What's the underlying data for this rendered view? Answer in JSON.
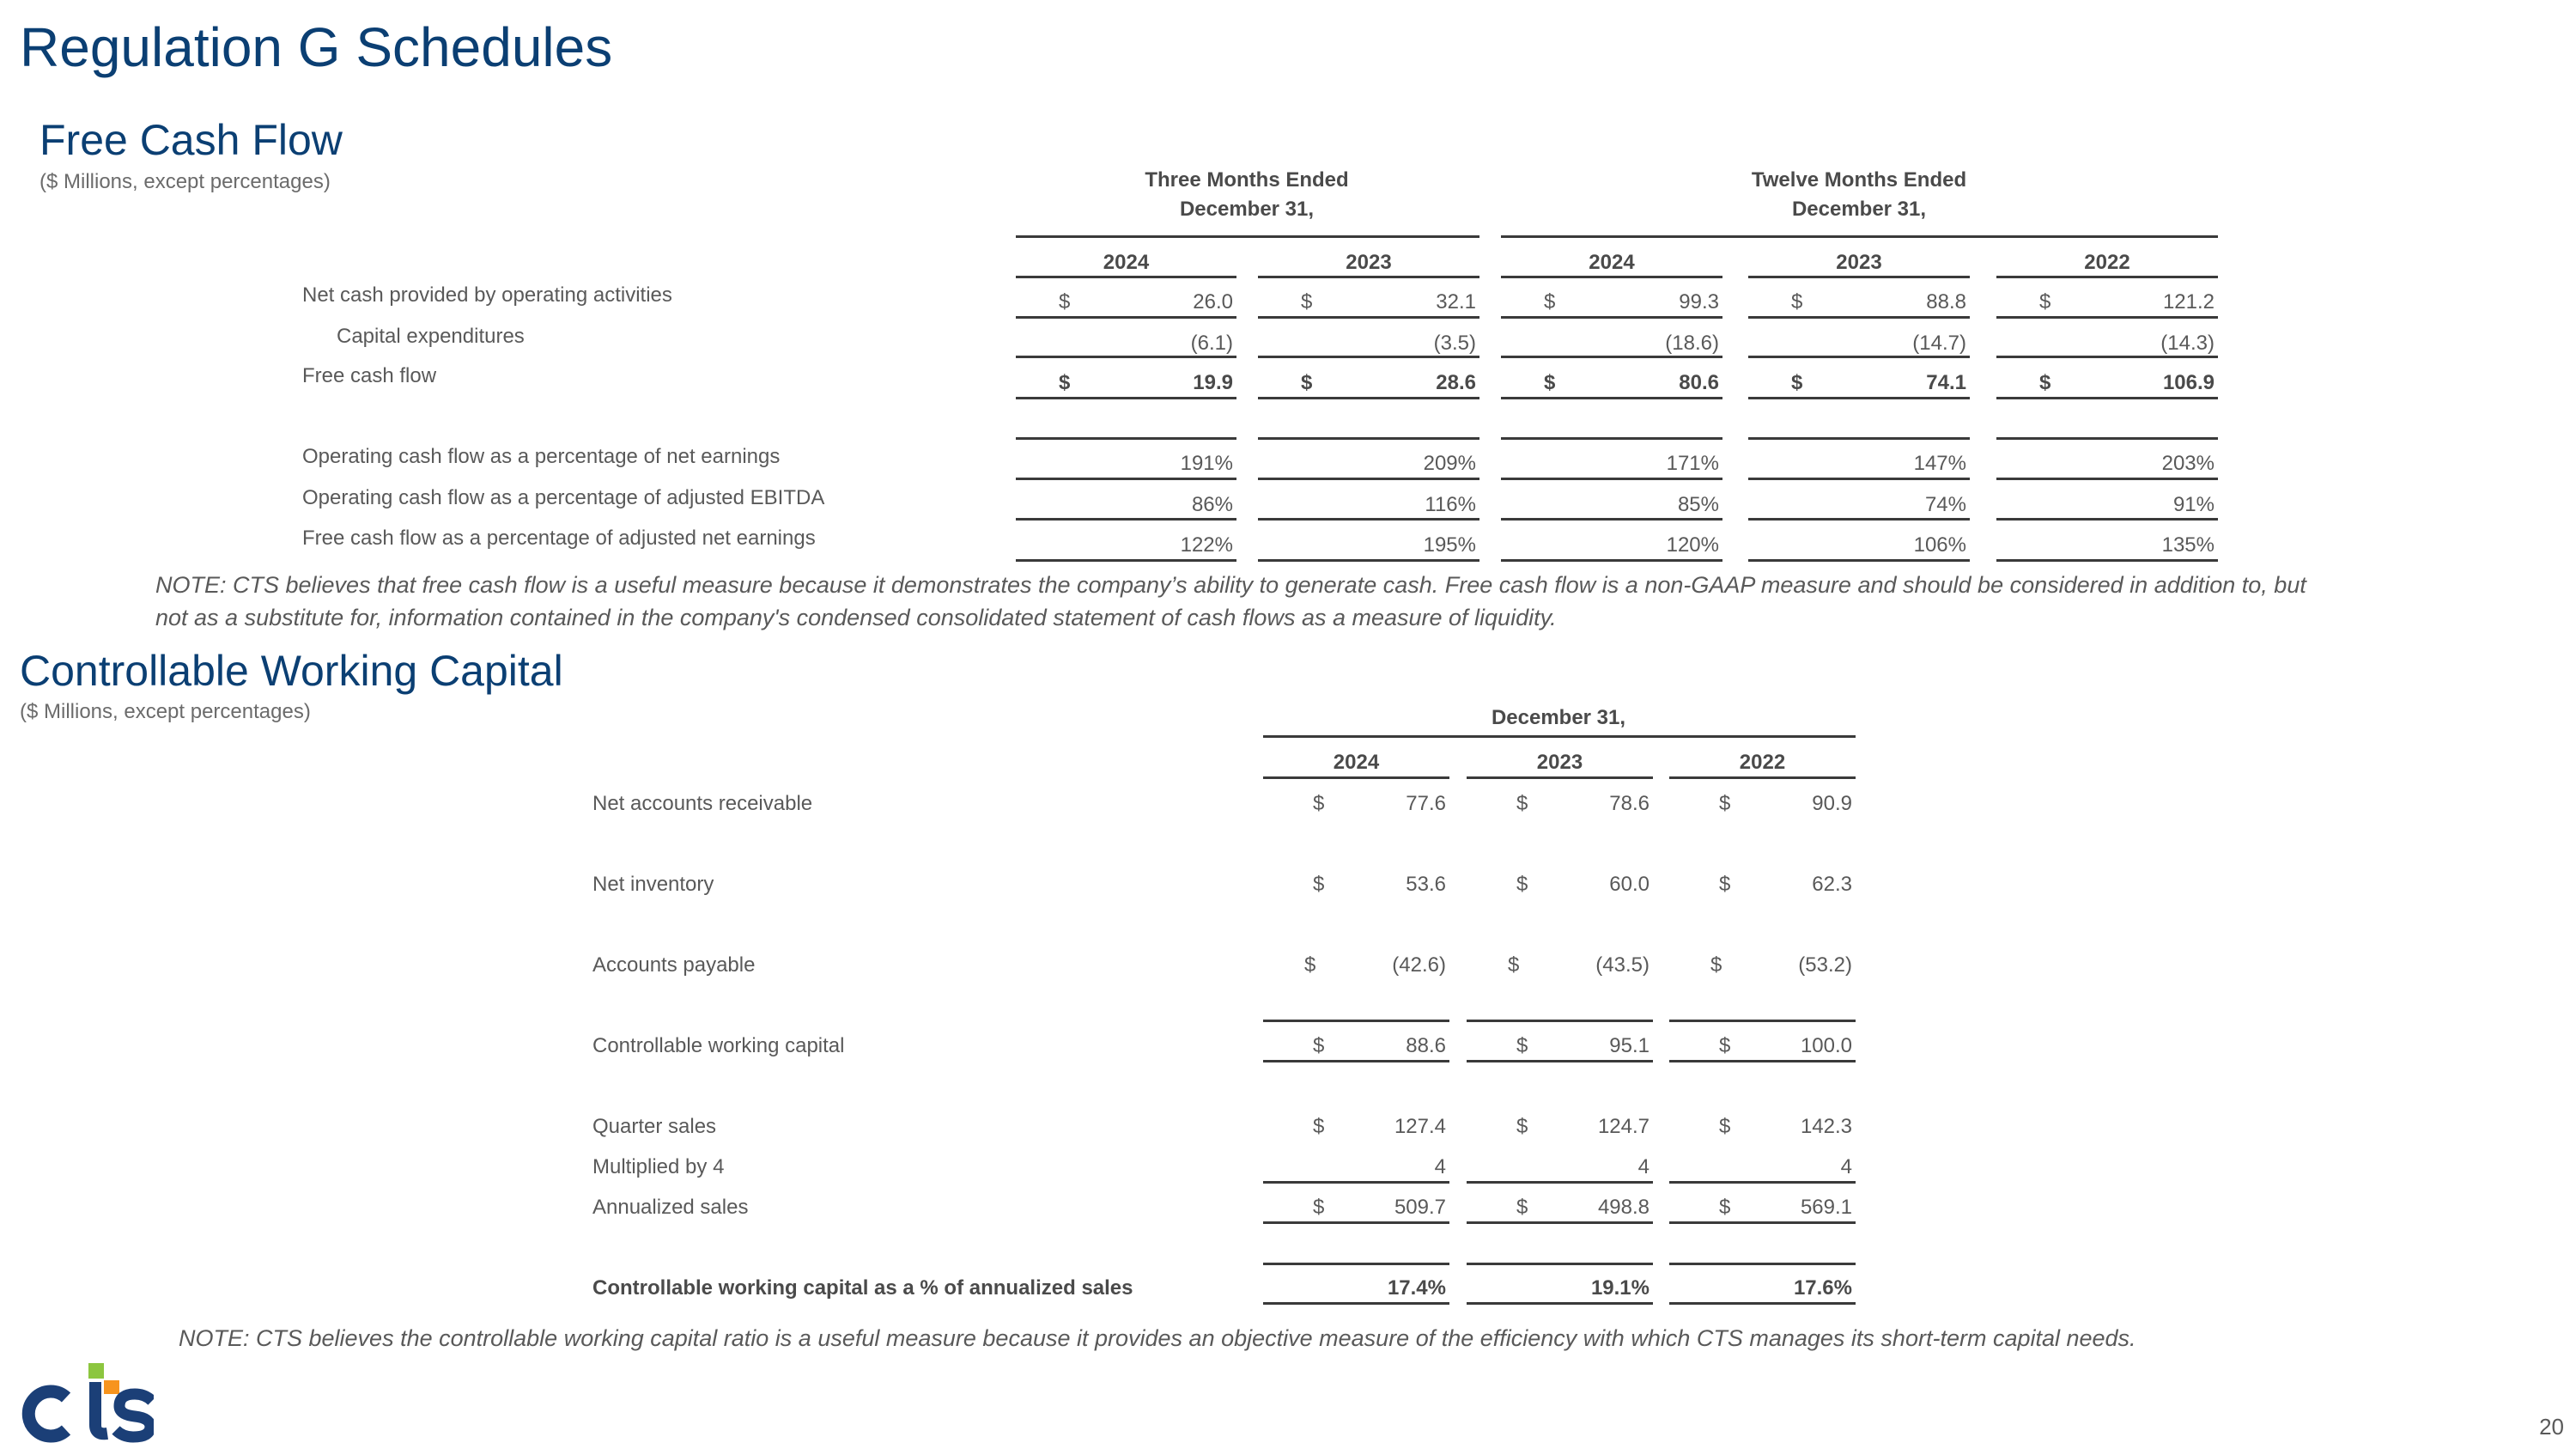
{
  "page_title": "Regulation G Schedules",
  "page_number": "20",
  "brand_colors": {
    "title": "#0b3f73",
    "logo_navy": "#1b3f77",
    "logo_green": "#8cc63f",
    "logo_orange": "#f7941d"
  },
  "logo_text": "CTS",
  "free_cash_flow": {
    "title": "Free Cash Flow",
    "subtitle": "($ Millions, except percentages)",
    "group_headers": [
      {
        "line1": "Three Months Ended",
        "line2": "December 31,"
      },
      {
        "line1": "Twelve Months Ended",
        "line2": "December 31,"
      }
    ],
    "years": [
      "2024",
      "2023",
      "2024",
      "2023",
      "2022"
    ],
    "rows": [
      {
        "label": "Net cash provided by operating activities",
        "indent": false,
        "bold": false,
        "dollar": true,
        "values": [
          "26.0",
          "32.1",
          "99.3",
          "88.8",
          "121.2"
        ]
      },
      {
        "label": "Capital expenditures",
        "indent": true,
        "bold": false,
        "dollar": false,
        "values": [
          "(6.1)",
          "(3.5)",
          "(18.6)",
          "(14.7)",
          "(14.3)"
        ]
      },
      {
        "label": "Free cash flow",
        "indent": false,
        "bold": true,
        "dollar": true,
        "values": [
          "19.9",
          "28.6",
          "80.6",
          "74.1",
          "106.9"
        ]
      },
      {
        "label": "Operating cash flow as a percentage of net earnings",
        "indent": false,
        "bold": false,
        "dollar": false,
        "values": [
          "191%",
          "209%",
          "171%",
          "147%",
          "203%"
        ]
      },
      {
        "label": "Operating cash flow as a percentage of adjusted EBITDA",
        "indent": false,
        "bold": false,
        "dollar": false,
        "values": [
          "86%",
          "116%",
          "85%",
          "74%",
          "91%"
        ]
      },
      {
        "label": "Free cash flow as a percentage of adjusted net earnings",
        "indent": false,
        "bold": false,
        "dollar": false,
        "values": [
          "122%",
          "195%",
          "120%",
          "106%",
          "135%"
        ]
      }
    ],
    "note_line1": "NOTE: CTS believes that free cash flow is a useful measure because it demonstrates the company’s ability to generate cash. Free cash flow is a non-GAAP measure and should be considered in addition to, but",
    "note_line2": "not as a substitute for, information contained in the company's condensed consolidated statement of cash flows as a measure of liquidity."
  },
  "controllable_working_capital": {
    "title": "Controllable Working Capital",
    "subtitle": "($ Millions, except percentages)",
    "group_header": "December 31,",
    "years": [
      "2024",
      "2023",
      "2022"
    ],
    "rows": [
      {
        "label": "Net accounts receivable",
        "bold": false,
        "dollar": true,
        "values": [
          "77.6",
          "78.6",
          "90.9"
        ]
      },
      {
        "label": "Net inventory",
        "bold": false,
        "dollar": true,
        "values": [
          "53.6",
          "60.0",
          "62.3"
        ]
      },
      {
        "label": "Accounts payable",
        "bold": false,
        "dollar": true,
        "values": [
          "(42.6)",
          "(43.5)",
          "(53.2)"
        ]
      },
      {
        "label": "Controllable working capital",
        "bold": false,
        "dollar": true,
        "values": [
          "88.6",
          "95.1",
          "100.0"
        ]
      },
      {
        "label": "Quarter sales",
        "bold": false,
        "dollar": true,
        "values": [
          "127.4",
          "124.7",
          "142.3"
        ]
      },
      {
        "label": "Multiplied by 4",
        "bold": false,
        "dollar": false,
        "values": [
          "4",
          "4",
          "4"
        ]
      },
      {
        "label": "Annualized sales",
        "bold": false,
        "dollar": true,
        "values": [
          "509.7",
          "498.8",
          "569.1"
        ]
      },
      {
        "label": "Controllable working capital as a % of annualized sales",
        "bold": true,
        "dollar": false,
        "values": [
          "17.4%",
          "19.1%",
          "17.6%"
        ]
      }
    ],
    "note": "NOTE: CTS believes the controllable working capital ratio is a useful measure because it provides an objective measure of the efficiency with which CTS manages its short-term capital needs."
  }
}
